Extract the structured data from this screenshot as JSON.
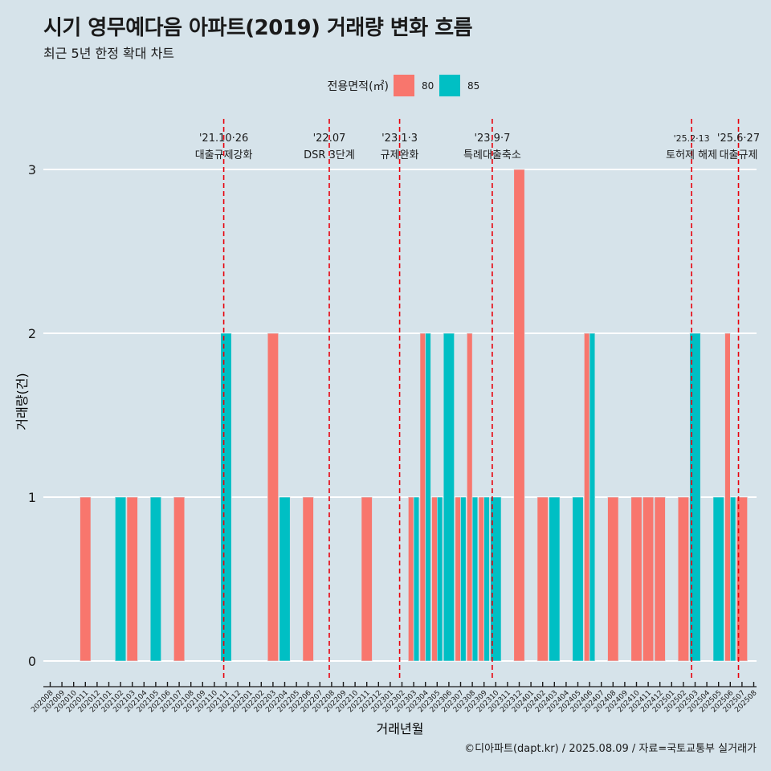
{
  "title": "시기 영무예다음 아파트(2019) 거래량 변화 흐름",
  "subtitle": "최근 5년 한정 확대 차트",
  "caption": "©디아파트(dapt.kr) / 2025.08.09 / 자료=국토교통부 실거래가",
  "chart_data": {
    "type": "bar",
    "xlabel": "거래년월",
    "ylabel": "거래량(건)",
    "ylim": [
      0,
      3
    ],
    "yticks": [
      0,
      1,
      2,
      3
    ],
    "grid": true,
    "legend": {
      "title": "전용면적(㎡)",
      "position": "top",
      "entries": [
        {
          "name": "80",
          "color": "#f8766d"
        },
        {
          "name": "85",
          "color": "#00bfc4"
        }
      ]
    },
    "categories": [
      "202008",
      "202009",
      "202010",
      "202011",
      "202012",
      "202101",
      "202102",
      "202103",
      "202104",
      "202105",
      "202106",
      "202107",
      "202108",
      "202109",
      "202110",
      "202111",
      "202112",
      "202201",
      "202202",
      "202203",
      "202204",
      "202205",
      "202206",
      "202207",
      "202208",
      "202209",
      "202210",
      "202211",
      "202212",
      "202301",
      "202302",
      "202303",
      "202304",
      "202305",
      "202306",
      "202307",
      "202308",
      "202309",
      "202310",
      "202311",
      "202312",
      "202401",
      "202402",
      "202403",
      "202404",
      "202405",
      "202406",
      "202407",
      "202408",
      "202409",
      "202410",
      "202411",
      "202412",
      "202501",
      "202502",
      "202503",
      "202504",
      "202505",
      "202506",
      "202507",
      "202508"
    ],
    "bars": [
      {
        "month": "202011",
        "series": "80",
        "value": 1,
        "slot": 0,
        "slots": 1
      },
      {
        "month": "202102",
        "series": "85",
        "value": 1,
        "slot": 0,
        "slots": 1
      },
      {
        "month": "202103",
        "series": "80",
        "value": 1,
        "slot": 0,
        "slots": 1
      },
      {
        "month": "202105",
        "series": "85",
        "value": 1,
        "slot": 0,
        "slots": 1
      },
      {
        "month": "202107",
        "series": "80",
        "value": 1,
        "slot": 0,
        "slots": 1
      },
      {
        "month": "202111",
        "series": "85",
        "value": 2,
        "slot": 0,
        "slots": 1
      },
      {
        "month": "202203",
        "series": "80",
        "value": 2,
        "slot": 0,
        "slots": 1
      },
      {
        "month": "202204",
        "series": "85",
        "value": 1,
        "slot": 0,
        "slots": 1
      },
      {
        "month": "202206",
        "series": "80",
        "value": 1,
        "slot": 0,
        "slots": 1
      },
      {
        "month": "202211",
        "series": "80",
        "value": 1,
        "slot": 0,
        "slots": 1
      },
      {
        "month": "202303",
        "series": "80",
        "value": 1,
        "slot": 0,
        "slots": 2
      },
      {
        "month": "202303",
        "series": "85",
        "value": 1,
        "slot": 1,
        "slots": 2
      },
      {
        "month": "202304",
        "series": "80",
        "value": 2,
        "slot": 0,
        "slots": 2
      },
      {
        "month": "202304",
        "series": "85",
        "value": 2,
        "slot": 1,
        "slots": 2
      },
      {
        "month": "202305",
        "series": "80",
        "value": 1,
        "slot": 0,
        "slots": 2
      },
      {
        "month": "202305",
        "series": "85",
        "value": 1,
        "slot": 1,
        "slots": 2
      },
      {
        "month": "202306",
        "series": "85",
        "value": 2,
        "slot": 0,
        "slots": 1
      },
      {
        "month": "202307",
        "series": "80",
        "value": 1,
        "slot": 0,
        "slots": 2
      },
      {
        "month": "202307",
        "series": "85",
        "value": 1,
        "slot": 1,
        "slots": 2
      },
      {
        "month": "202308",
        "series": "80",
        "value": 2,
        "slot": 0,
        "slots": 2
      },
      {
        "month": "202308",
        "series": "85",
        "value": 1,
        "slot": 1,
        "slots": 2
      },
      {
        "month": "202309",
        "series": "80",
        "value": 1,
        "slot": 0,
        "slots": 2
      },
      {
        "month": "202309",
        "series": "85",
        "value": 1,
        "slot": 1,
        "slots": 2
      },
      {
        "month": "202310",
        "series": "85",
        "value": 1,
        "slot": 0,
        "slots": 1
      },
      {
        "month": "202312",
        "series": "80",
        "value": 3,
        "slot": 0,
        "slots": 1
      },
      {
        "month": "202402",
        "series": "80",
        "value": 1,
        "slot": 0,
        "slots": 1
      },
      {
        "month": "202403",
        "series": "85",
        "value": 1,
        "slot": 0,
        "slots": 1
      },
      {
        "month": "202405",
        "series": "85",
        "value": 1,
        "slot": 0,
        "slots": 1
      },
      {
        "month": "202406",
        "series": "80",
        "value": 2,
        "slot": 0,
        "slots": 2
      },
      {
        "month": "202406",
        "series": "85",
        "value": 2,
        "slot": 1,
        "slots": 2
      },
      {
        "month": "202408",
        "series": "80",
        "value": 1,
        "slot": 0,
        "slots": 1
      },
      {
        "month": "202410",
        "series": "80",
        "value": 1,
        "slot": 0,
        "slots": 1
      },
      {
        "month": "202411",
        "series": "80",
        "value": 1,
        "slot": 0,
        "slots": 1
      },
      {
        "month": "202412",
        "series": "80",
        "value": 1,
        "slot": 0,
        "slots": 1
      },
      {
        "month": "202502",
        "series": "80",
        "value": 1,
        "slot": 0,
        "slots": 1
      },
      {
        "month": "202503",
        "series": "85",
        "value": 2,
        "slot": 0,
        "slots": 1
      },
      {
        "month": "202505",
        "series": "85",
        "value": 1,
        "slot": 0,
        "slots": 1
      },
      {
        "month": "202506",
        "series": "80",
        "value": 2,
        "slot": 0,
        "slots": 2
      },
      {
        "month": "202506",
        "series": "85",
        "value": 1,
        "slot": 1,
        "slots": 2
      },
      {
        "month": "202507",
        "series": "80",
        "value": 1,
        "slot": 0,
        "slots": 1
      }
    ],
    "annotations": [
      {
        "date": "2021-10-26",
        "month_index": 14.8,
        "date_label": "'21.10·26",
        "text": "대출규제강화"
      },
      {
        "date": "2022-07",
        "month_index": 23.8,
        "date_label": "'22.07",
        "text": "DSR 3단계"
      },
      {
        "date": "2023-01-03",
        "month_index": 29.8,
        "date_label": "'23.1·3",
        "text": "규제완화"
      },
      {
        "date": "2023-09-07",
        "month_index": 37.7,
        "date_label": "'23.9·7",
        "text": "특례대출축소"
      },
      {
        "date": "2025-02-13",
        "month_index": 54.7,
        "date_label": "'25.2·13",
        "text": "토허제 해제"
      },
      {
        "date": "2025-06-27",
        "month_index": 58.7,
        "date_label": "'25.6·27",
        "text": "대출규제"
      }
    ]
  }
}
